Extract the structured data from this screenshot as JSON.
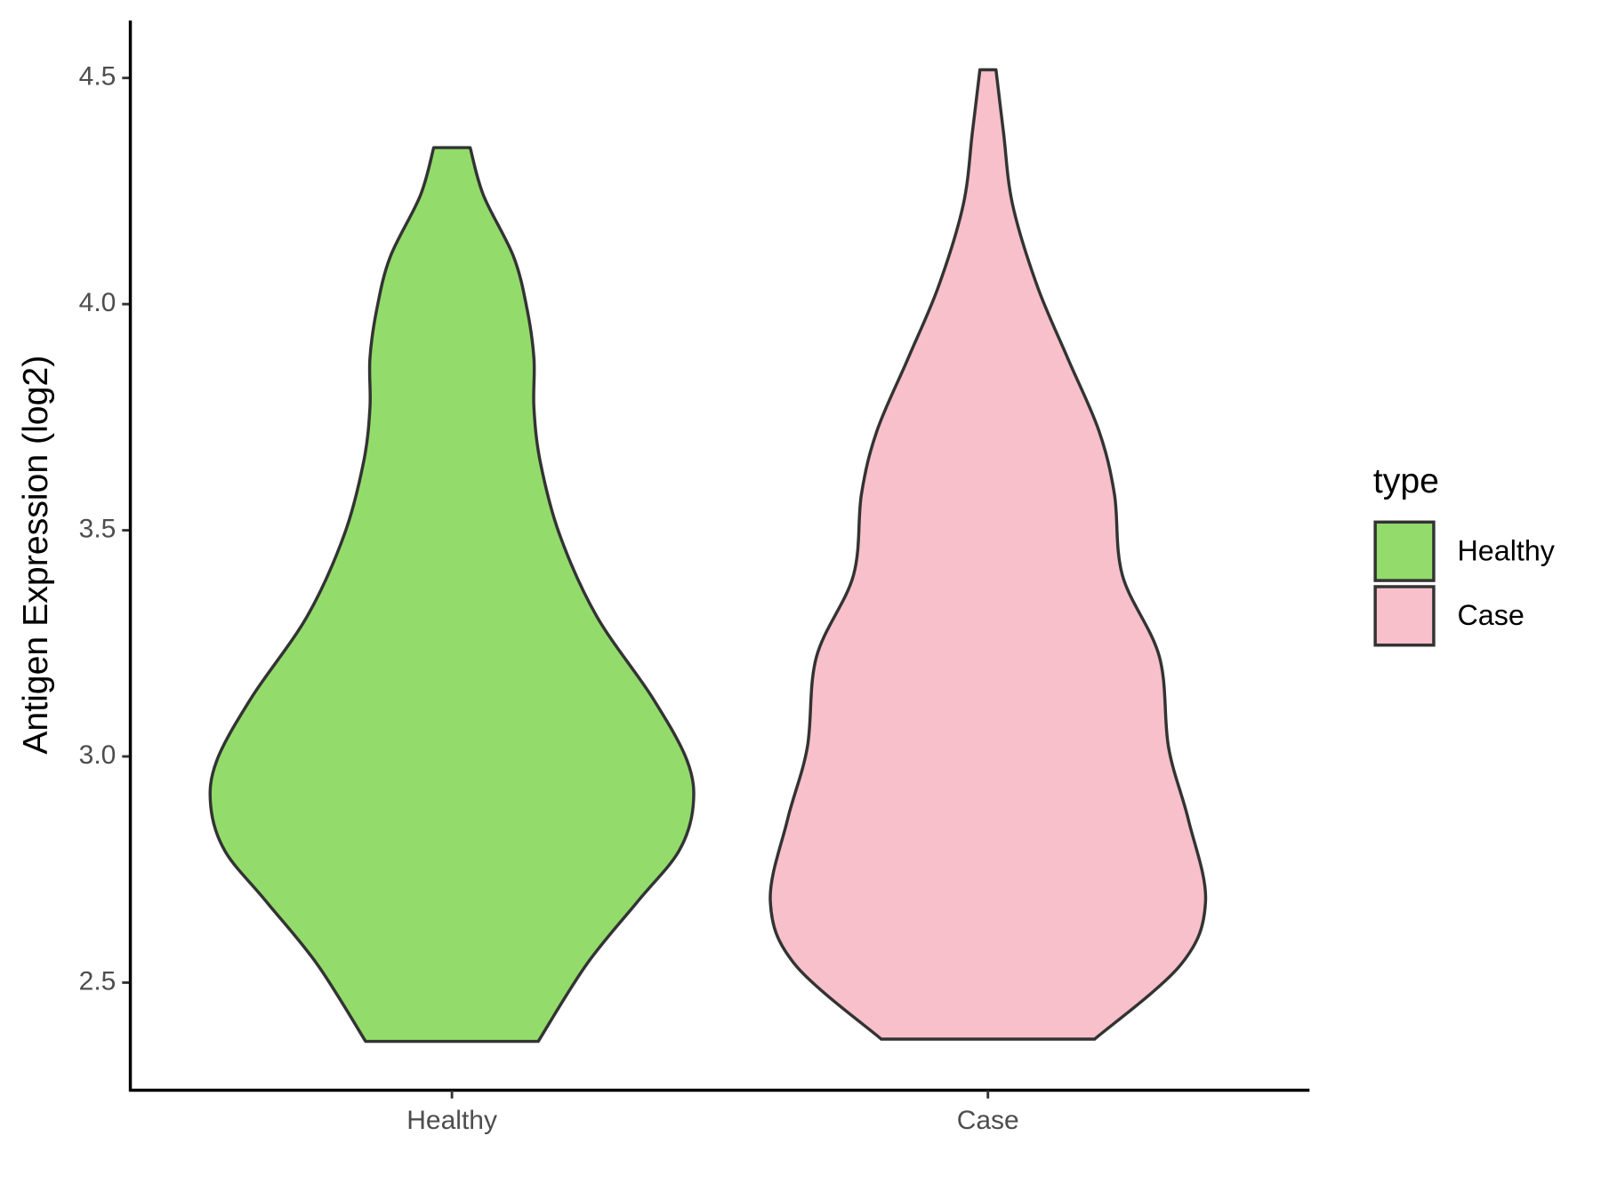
{
  "chart_data": {
    "type": "violin",
    "y_label": "Antigen Expression (log2)",
    "categories": [
      "Healthy",
      "Case"
    ],
    "series": [
      {
        "name": "Healthy",
        "color": "#93dc6b",
        "y": [
          4.346,
          4.24,
          4.105,
          3.99,
          3.88,
          3.77,
          3.65,
          3.49,
          3.31,
          3.13,
          2.99,
          2.89,
          2.79,
          2.68,
          2.54,
          2.37
        ],
        "width": [
          0.034,
          0.059,
          0.115,
          0.14,
          0.153,
          0.153,
          0.165,
          0.201,
          0.27,
          0.374,
          0.439,
          0.45,
          0.423,
          0.347,
          0.251,
          0.161
        ]
      },
      {
        "name": "Case",
        "color": "#f7c0cb",
        "y": [
          4.518,
          4.38,
          4.22,
          4.04,
          3.88,
          3.72,
          3.58,
          3.4,
          3.22,
          3.02,
          2.86,
          2.68,
          2.54,
          2.375
        ],
        "width": [
          0.015,
          0.029,
          0.046,
          0.092,
          0.149,
          0.207,
          0.236,
          0.251,
          0.32,
          0.337,
          0.374,
          0.406,
          0.36,
          0.199
        ]
      }
    ],
    "ylim": [
      2.262,
      4.627
    ],
    "yticks": [
      {
        "value": 2.5,
        "label": "2.5"
      },
      {
        "value": 3,
        "label": "3.0"
      },
      {
        "value": 3.5,
        "label": "3.5"
      },
      {
        "value": 4,
        "label": "4.0"
      },
      {
        "value": 4.5,
        "label": "4.5"
      }
    ],
    "legend_title": "type",
    "legend": "right"
  }
}
